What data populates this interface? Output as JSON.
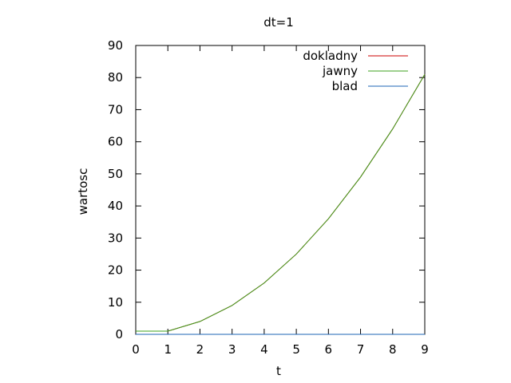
{
  "chart_data": {
    "type": "line",
    "title": "dt=1",
    "xlabel": "t",
    "ylabel": "wartosc",
    "xlim": [
      0,
      9
    ],
    "ylim": [
      0,
      90
    ],
    "xticks": [
      "0",
      "1",
      "2",
      "3",
      "4",
      "5",
      "6",
      "7",
      "8",
      "9"
    ],
    "yticks": [
      "0",
      "10",
      "20",
      "30",
      "40",
      "50",
      "60",
      "70",
      "80",
      "90"
    ],
    "grid": false,
    "legend_position": "top-right",
    "series": [
      {
        "name": "dokladny",
        "color": "#cc0000",
        "x": [
          0,
          1,
          2,
          3,
          4,
          5,
          6,
          7,
          8,
          9
        ],
        "y": [
          1,
          1,
          4,
          9,
          16,
          25,
          36,
          49,
          64,
          81
        ]
      },
      {
        "name": "jawny",
        "color": "#3ca01e",
        "x": [
          0,
          1,
          2,
          3,
          4,
          5,
          6,
          7,
          8,
          9
        ],
        "y": [
          1,
          1,
          4,
          9,
          16,
          25,
          36,
          49,
          64,
          81
        ]
      },
      {
        "name": "blad",
        "color": "#1e64b4",
        "x": [
          0,
          1,
          2,
          3,
          4,
          5,
          6,
          7,
          8,
          9
        ],
        "y": [
          0,
          0,
          0,
          0,
          0,
          0,
          0,
          0,
          0,
          0
        ]
      }
    ]
  }
}
